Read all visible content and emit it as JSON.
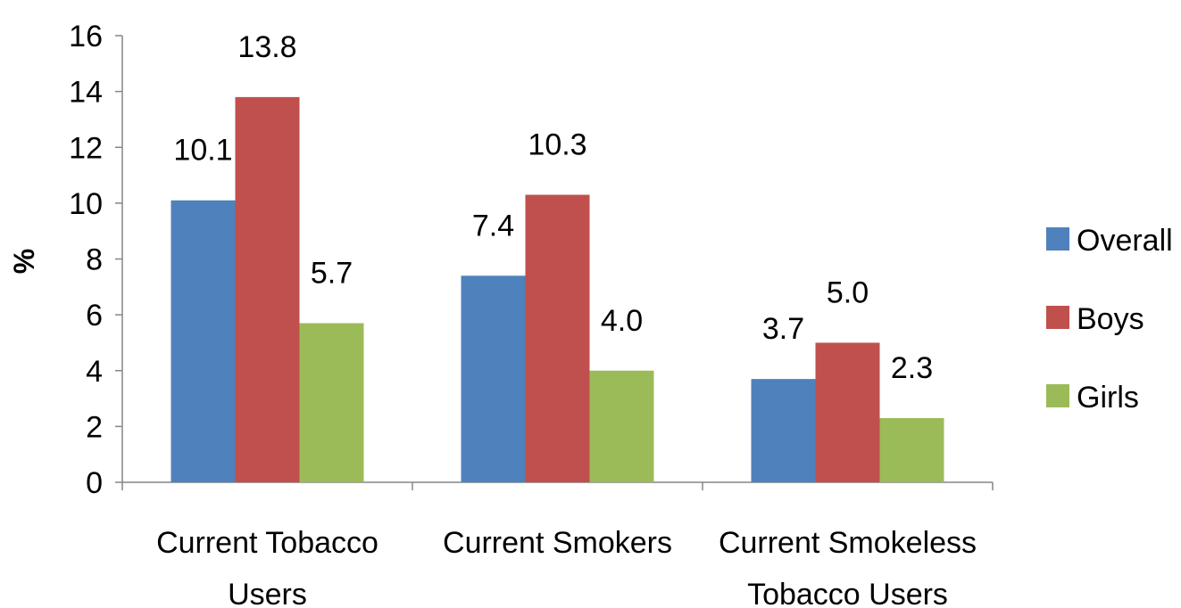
{
  "chart_data": {
    "type": "bar",
    "ylabel": "%",
    "xlabel": "",
    "ylim": [
      0,
      16
    ],
    "yticks": [
      "0",
      "2",
      "4",
      "6",
      "8",
      "10",
      "12",
      "14",
      "16"
    ],
    "grid": false,
    "legend_position": "right",
    "categories": [
      [
        "Current Tobacco",
        "Users"
      ],
      [
        "Current Smokers"
      ],
      [
        "Current Smokeless",
        "Tobacco Users"
      ]
    ],
    "series": [
      {
        "name": "Overall",
        "color": "#4F81BD",
        "values": [
          10.1,
          7.4,
          3.7
        ],
        "labels": [
          "10.1",
          "7.4",
          "3.7"
        ]
      },
      {
        "name": "Boys",
        "color": "#C0504D",
        "values": [
          13.8,
          10.3,
          5.0
        ],
        "labels": [
          "13.8",
          "10.3",
          "5.0"
        ]
      },
      {
        "name": "Girls",
        "color": "#9BBB59",
        "values": [
          5.7,
          4.0,
          2.3
        ],
        "labels": [
          "5.7",
          "4.0",
          "2.3"
        ]
      }
    ]
  }
}
